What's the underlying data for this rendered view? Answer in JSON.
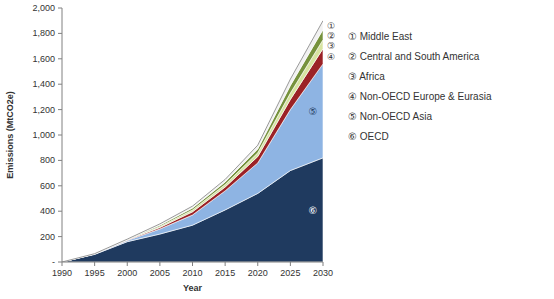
{
  "chart_data": {
    "type": "area",
    "stacked": true,
    "x_label": "Year",
    "y_label": "Emissions (MtCO2e)",
    "x": [
      1990,
      1995,
      2000,
      2005,
      2010,
      2015,
      2020,
      2025,
      2030
    ],
    "xlim": [
      1990,
      2030
    ],
    "xticks": [
      1990,
      1995,
      2000,
      2005,
      2010,
      2015,
      2020,
      2025,
      2030
    ],
    "ylim": [
      0,
      2000
    ],
    "yticks": [
      {
        "value": 0,
        "label": "-"
      },
      200,
      400,
      600,
      800,
      {
        "value": 1000,
        "label": "1,000"
      },
      {
        "value": 1200,
        "label": "1,200"
      },
      {
        "value": 1400,
        "label": "1,400"
      },
      {
        "value": 1600,
        "label": "1,600"
      },
      {
        "value": 1800,
        "label": "1,800"
      },
      {
        "value": 2000,
        "label": "2,000"
      }
    ],
    "grid": false,
    "legend": "right",
    "series": [
      {
        "name": "⑥ OECD",
        "color": "#1f3a5f",
        "values": [
          0,
          60,
          160,
          220,
          290,
          410,
          540,
          720,
          820
        ]
      },
      {
        "name": "⑤ Non-OECD Asia",
        "color": "#8eb4e3",
        "values": [
          0,
          3,
          10,
          40,
          80,
          150,
          240,
          480,
          740
        ]
      },
      {
        "name": "④ Non-OECD Europe & Eurasia",
        "color": "#9b2226",
        "values": [
          0,
          1,
          4,
          12,
          25,
          30,
          50,
          80,
          120
        ]
      },
      {
        "name": "③ Africa",
        "color": "#d7e4a0",
        "values": [
          0,
          0.5,
          2,
          8,
          15,
          20,
          30,
          50,
          70
        ]
      },
      {
        "name": "② Central and South America",
        "color": "#76923c",
        "values": [
          0,
          0.5,
          2,
          10,
          15,
          20,
          30,
          60,
          80
        ]
      },
      {
        "name": "① Middle East",
        "color": "#f2f2f2",
        "values": [
          0,
          0.5,
          2,
          10,
          15,
          20,
          30,
          50,
          70
        ]
      }
    ],
    "annotations": [
      "⑥",
      "⑤",
      "④",
      "③",
      "②",
      "①"
    ]
  }
}
